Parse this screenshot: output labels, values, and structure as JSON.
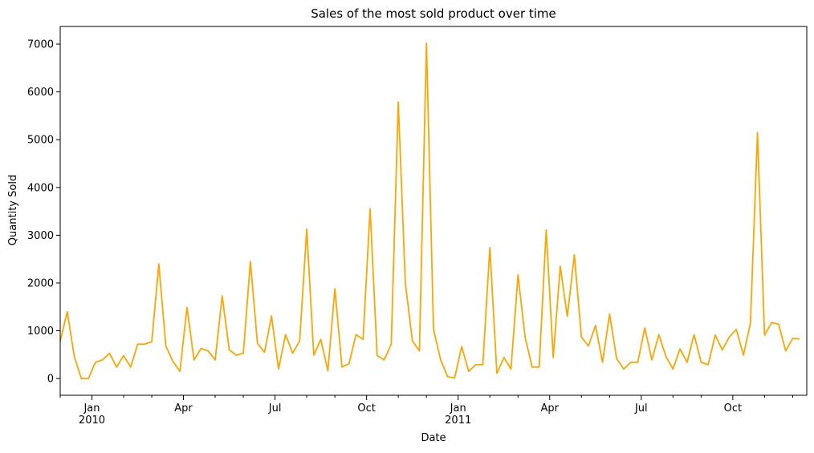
{
  "chart_data": {
    "type": "line",
    "title": "Sales of the most sold product over time",
    "xlabel": "Date",
    "ylabel": "Quantity Sold",
    "ylim": [
      -350,
      7370
    ],
    "grid": false,
    "line_color": "#FFA500",
    "y_ticks": [
      0,
      1000,
      2000,
      3000,
      4000,
      5000,
      6000,
      7000
    ],
    "x_major_ticks": [
      {
        "index": 4.5,
        "label": "Jan",
        "year": "2010"
      },
      {
        "index": 17.5,
        "label": "Apr",
        "year": ""
      },
      {
        "index": 30.5,
        "label": "Jul",
        "year": ""
      },
      {
        "index": 43.5,
        "label": "Oct",
        "year": ""
      },
      {
        "index": 56.5,
        "label": "Jan",
        "year": "2011"
      },
      {
        "index": 69.5,
        "label": "Apr",
        "year": ""
      },
      {
        "index": 82.5,
        "label": "Jul",
        "year": ""
      },
      {
        "index": 95.5,
        "label": "Oct",
        "year": ""
      }
    ],
    "x_minor_ticks": [
      0,
      9,
      13,
      22,
      26,
      35,
      39,
      48,
      52,
      61,
      65,
      74,
      78,
      87,
      91,
      100,
      104
    ],
    "x_range": [
      0,
      106
    ],
    "series": [
      {
        "name": "Quantity Sold",
        "values": [
          780,
          1400,
          460,
          0,
          0,
          340,
          390,
          530,
          240,
          480,
          240,
          720,
          720,
          770,
          2400,
          680,
          360,
          150,
          1490,
          390,
          630,
          580,
          390,
          1730,
          600,
          490,
          530,
          2450,
          740,
          550,
          1310,
          200,
          920,
          530,
          790,
          3130,
          490,
          820,
          160,
          1880,
          240,
          310,
          920,
          820,
          3550,
          480,
          390,
          720,
          5790,
          2000,
          790,
          580,
          7020,
          1030,
          400,
          40,
          10,
          670,
          150,
          290,
          290,
          2740,
          110,
          440,
          200,
          2170,
          870,
          240,
          240,
          3110,
          440,
          2350,
          1300,
          2590,
          870,
          680,
          1110,
          340,
          1350,
          420,
          200,
          340,
          340,
          1060,
          390,
          920,
          460,
          200,
          620,
          340,
          920,
          340,
          290,
          910,
          600,
          870,
          1030,
          490,
          1160,
          5150,
          910,
          1170,
          1140,
          580,
          840,
          830
        ]
      }
    ]
  }
}
